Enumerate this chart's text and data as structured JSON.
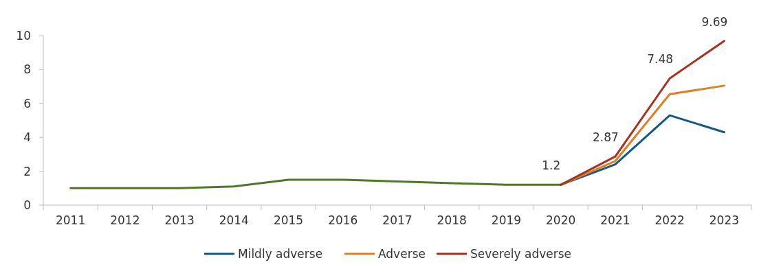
{
  "chart_data": {
    "type": "line",
    "categories": [
      "2011",
      "2012",
      "2013",
      "2014",
      "2015",
      "2016",
      "2017",
      "2018",
      "2019",
      "2020",
      "2021",
      "2022",
      "2023"
    ],
    "series": [
      {
        "color": "#4e7a1f",
        "values": [
          1.0,
          1.0,
          1.0,
          1.1,
          1.5,
          1.5,
          1.4,
          1.3,
          1.2,
          1.2,
          null,
          null,
          null
        ]
      },
      {
        "name": "Mildly adverse",
        "color": "#0e5a87",
        "values": [
          null,
          null,
          null,
          null,
          null,
          null,
          null,
          null,
          null,
          1.2,
          2.4,
          5.3,
          4.3
        ]
      },
      {
        "name": "Adverse",
        "color": "#de7f26",
        "values": [
          null,
          null,
          null,
          null,
          null,
          null,
          null,
          null,
          null,
          1.2,
          2.6,
          6.55,
          7.05
        ]
      },
      {
        "name": "Severely adverse",
        "color": "#a8301f",
        "values": [
          null,
          null,
          null,
          null,
          null,
          null,
          null,
          null,
          null,
          1.2,
          2.87,
          7.48,
          9.69
        ],
        "value_labels": [
          null,
          null,
          null,
          null,
          null,
          null,
          null,
          null,
          null,
          "1.2",
          "2.87",
          "7.48",
          "9.69"
        ]
      }
    ],
    "ylim": [
      0,
      10
    ],
    "yticks": [
      0,
      2,
      4,
      6,
      8,
      10
    ],
    "grid": false,
    "legend": "bottom",
    "marker": "none",
    "line_style": "solid"
  }
}
